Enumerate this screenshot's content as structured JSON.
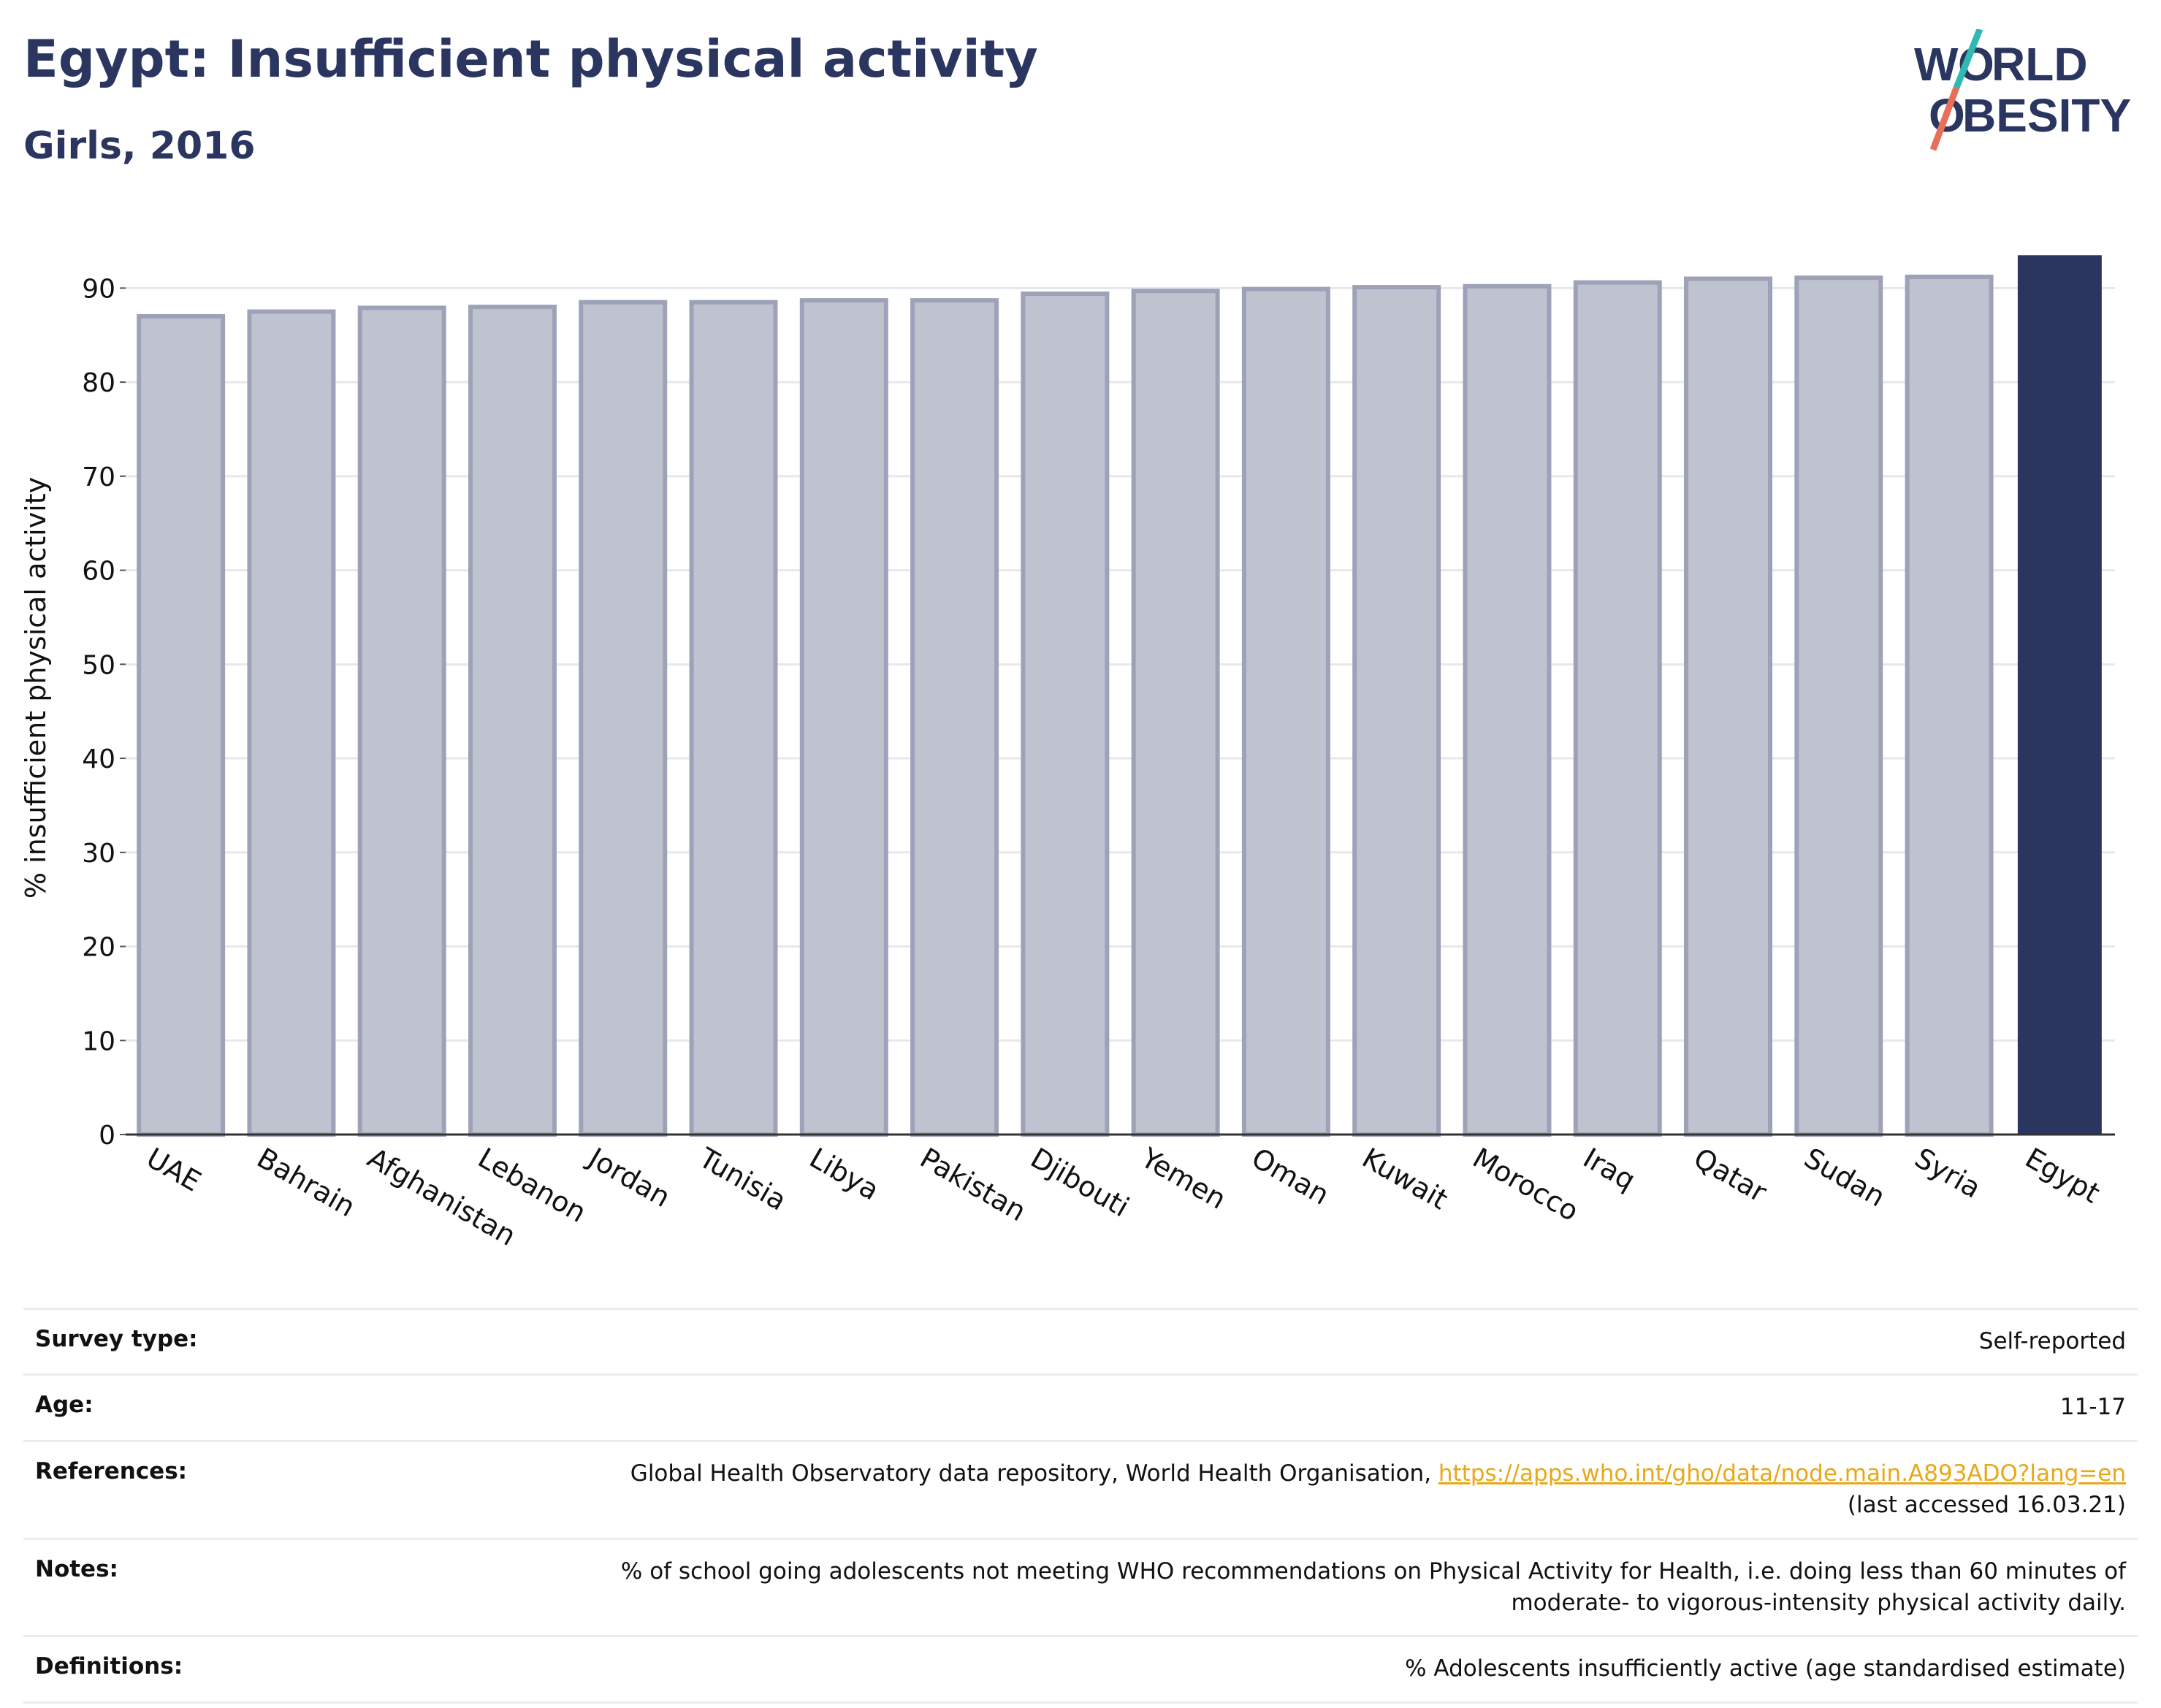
{
  "header": {
    "title": "Egypt: Insufficient physical activity",
    "subtitle": "Girls, 2016"
  },
  "logo": {
    "line1": "WORLD",
    "line2": "OBESITY"
  },
  "chart_data": {
    "type": "bar",
    "ylabel": "% insufficient physical activity",
    "ylim": [
      0,
      95
    ],
    "yticks": [
      0,
      10,
      20,
      30,
      40,
      50,
      60,
      70,
      80,
      90
    ],
    "grid": true,
    "categories": [
      "UAE",
      "Bahrain",
      "Afghanistan",
      "Lebanon",
      "Jordan",
      "Tunisia",
      "Libya",
      "Pakistan",
      "Djibouti",
      "Yemen",
      "Oman",
      "Kuwait",
      "Morocco",
      "Iraq",
      "Qatar",
      "Sudan",
      "Syria",
      "Egypt"
    ],
    "values": [
      87.0,
      87.5,
      87.9,
      88.0,
      88.5,
      88.5,
      88.7,
      88.7,
      89.4,
      89.7,
      89.9,
      90.1,
      90.2,
      90.6,
      91.0,
      91.1,
      91.2,
      93.5
    ],
    "highlight": "Egypt",
    "colors": {
      "bar": "#bfc2cf",
      "bar_edge": "#9da2b8",
      "highlight": "#2a3560",
      "grid": "#e6e8ee",
      "axis": "#333333"
    }
  },
  "info": {
    "survey_type": {
      "label": "Survey type:",
      "value": "Self-reported"
    },
    "age": {
      "label": "Age:",
      "value": "11-17"
    },
    "references": {
      "label": "References:",
      "text": "Global Health Observatory data repository, World Health Organisation,",
      "link": "https://apps.who.int/gho/data/node.main.A893ADO?lang=en",
      "accessed": "(last accessed 16.03.21)"
    },
    "notes": {
      "label": "Notes:",
      "line1": "% of school going adolescents not meeting WHO recommendations on Physical Activity for Health, i.e. doing less than 60 minutes of",
      "line2": "moderate- to vigorous-intensity physical activity daily."
    },
    "definitions": {
      "label": "Definitions:",
      "value": "% Adolescents insufficiently active (age standardised estimate)"
    }
  }
}
